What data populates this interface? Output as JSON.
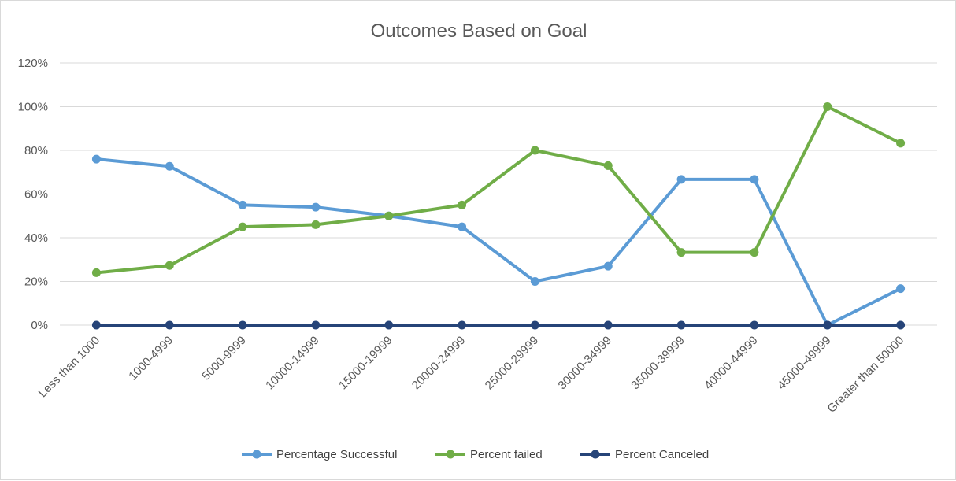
{
  "chart_data": {
    "type": "line",
    "title": "Outcomes Based on Goal",
    "xlabel": "",
    "ylabel": "",
    "ylim": [
      0,
      1.2
    ],
    "ytick_values": [
      0,
      0.2,
      0.4,
      0.6,
      0.8,
      1.0,
      1.2
    ],
    "ytick_labels": [
      "0%",
      "20%",
      "40%",
      "60%",
      "80%",
      "100%",
      "120%"
    ],
    "grid": true,
    "legend_position": "bottom",
    "categories": [
      "Less than 1000",
      "1000-4999",
      "5000-9999",
      "10000-14999",
      "15000-19999",
      "20000-24999",
      "25000-29999",
      "30000-34999",
      "35000-39999",
      "40000-44999",
      "45000-49999",
      "Greater than 50000"
    ],
    "series": [
      {
        "name": "Percentage Successful",
        "color": "#5B9BD5",
        "values": [
          0.76,
          0.727,
          0.55,
          0.54,
          0.5,
          0.45,
          0.2,
          0.27,
          0.667,
          0.667,
          0.0,
          0.167
        ]
      },
      {
        "name": "Percent failed",
        "color": "#70AD47",
        "values": [
          0.24,
          0.273,
          0.45,
          0.46,
          0.5,
          0.55,
          0.8,
          0.73,
          0.333,
          0.333,
          1.0,
          0.833
        ]
      },
      {
        "name": "Percent Canceled",
        "color": "#264478",
        "values": [
          0,
          0,
          0,
          0,
          0,
          0,
          0,
          0,
          0,
          0,
          0,
          0
        ]
      }
    ]
  }
}
